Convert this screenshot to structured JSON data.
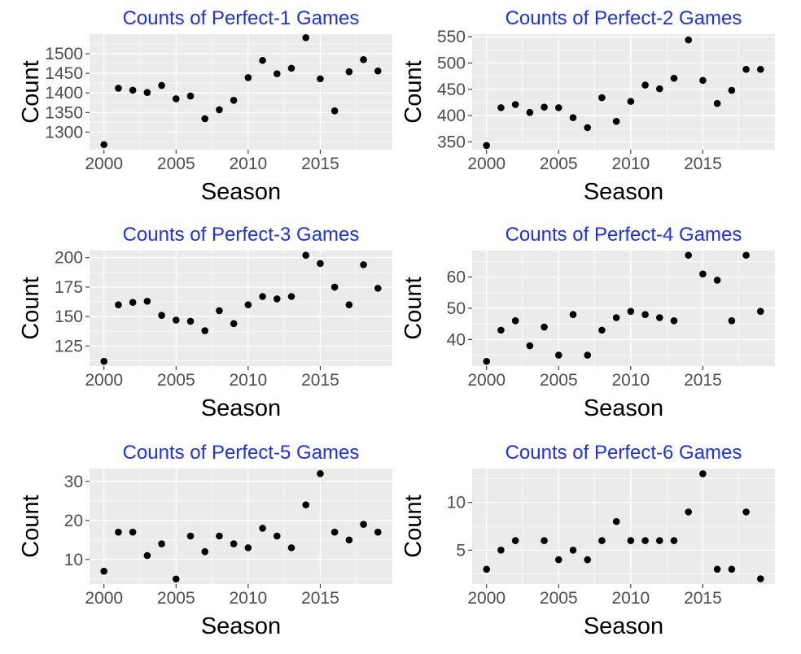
{
  "colors": {
    "title": "#1A2EFF",
    "panel": "#EBEBEB",
    "grid": "#FFFFFF",
    "point": "#000000"
  },
  "chart_data": [
    {
      "type": "scatter",
      "title": "Counts of Perfect-1 Games",
      "xlabel": "Season",
      "ylabel": "Count",
      "xlim": [
        1999,
        2020
      ],
      "ylim": [
        1255,
        1550
      ],
      "xticks": [
        2000,
        2005,
        2010,
        2015
      ],
      "yticks": [
        1300,
        1350,
        1400,
        1450,
        1500
      ],
      "grid": true,
      "x": [
        2000,
        2001,
        2002,
        2003,
        2004,
        2005,
        2006,
        2007,
        2008,
        2009,
        2010,
        2011,
        2012,
        2013,
        2014,
        2015,
        2016,
        2017,
        2018,
        2019
      ],
      "y": [
        1268,
        1412,
        1407,
        1401,
        1419,
        1385,
        1392,
        1334,
        1357,
        1381,
        1439,
        1483,
        1449,
        1463,
        1541,
        1436,
        1354,
        1454,
        1485,
        1456
      ]
    },
    {
      "type": "scatter",
      "title": "Counts of Perfect-2 Games",
      "xlabel": "Season",
      "ylabel": "Count",
      "xlim": [
        1999,
        2020
      ],
      "ylim": [
        335,
        555
      ],
      "xticks": [
        2000,
        2005,
        2010,
        2015
      ],
      "yticks": [
        350,
        400,
        450,
        500,
        550
      ],
      "grid": true,
      "x": [
        2000,
        2001,
        2002,
        2003,
        2004,
        2005,
        2006,
        2007,
        2008,
        2009,
        2010,
        2011,
        2012,
        2013,
        2014,
        2015,
        2016,
        2017,
        2018,
        2019
      ],
      "y": [
        343,
        415,
        421,
        406,
        416,
        415,
        396,
        377,
        434,
        389,
        427,
        458,
        451,
        471,
        544,
        467,
        423,
        448,
        488,
        488
      ]
    },
    {
      "type": "scatter",
      "title": "Counts of Perfect-3 Games",
      "xlabel": "Season",
      "ylabel": "Count",
      "xlim": [
        1999,
        2020
      ],
      "ylim": [
        108,
        206
      ],
      "xticks": [
        2000,
        2005,
        2010,
        2015
      ],
      "yticks": [
        125,
        150,
        175,
        200
      ],
      "grid": true,
      "x": [
        2000,
        2001,
        2002,
        2003,
        2004,
        2005,
        2006,
        2007,
        2008,
        2009,
        2010,
        2011,
        2012,
        2013,
        2014,
        2015,
        2016,
        2017,
        2018,
        2019
      ],
      "y": [
        112,
        160,
        162,
        163,
        151,
        147,
        146,
        138,
        155,
        144,
        160,
        167,
        165,
        167,
        202,
        195,
        175,
        160,
        194,
        174
      ]
    },
    {
      "type": "scatter",
      "title": "Counts of Perfect-4 Games",
      "xlabel": "Season",
      "ylabel": "Count",
      "xlim": [
        1999,
        2020
      ],
      "ylim": [
        31.5,
        68.5
      ],
      "xticks": [
        2000,
        2005,
        2010,
        2015
      ],
      "yticks": [
        40,
        50,
        60
      ],
      "grid": true,
      "x": [
        2000,
        2001,
        2002,
        2003,
        2004,
        2005,
        2006,
        2007,
        2008,
        2009,
        2010,
        2011,
        2012,
        2013,
        2014,
        2015,
        2016,
        2017,
        2018,
        2019
      ],
      "y": [
        33,
        43,
        46,
        38,
        44,
        35,
        48,
        35,
        43,
        47,
        49,
        48,
        47,
        46,
        67,
        61,
        59,
        46,
        67,
        49
      ]
    },
    {
      "type": "scatter",
      "title": "Counts of Perfect-5 Games",
      "xlabel": "Season",
      "ylabel": "Count",
      "xlim": [
        1999,
        2020
      ],
      "ylim": [
        3.7,
        33.3
      ],
      "xticks": [
        2000,
        2005,
        2010,
        2015
      ],
      "yticks": [
        10,
        20,
        30
      ],
      "grid": true,
      "x": [
        2000,
        2001,
        2002,
        2003,
        2004,
        2005,
        2006,
        2007,
        2008,
        2009,
        2010,
        2011,
        2012,
        2013,
        2014,
        2015,
        2016,
        2017,
        2018,
        2019
      ],
      "y": [
        7,
        17,
        17,
        11,
        14,
        5,
        16,
        12,
        16,
        14,
        13,
        18,
        16,
        13,
        24,
        32,
        17,
        15,
        19,
        17
      ]
    },
    {
      "type": "scatter",
      "title": "Counts of Perfect-6 Games",
      "xlabel": "Season",
      "ylabel": "Count",
      "xlim": [
        1999,
        2020
      ],
      "ylim": [
        1.45,
        13.55
      ],
      "xticks": [
        2000,
        2005,
        2010,
        2015
      ],
      "yticks": [
        5,
        10
      ],
      "grid": true,
      "x": [
        2000,
        2001,
        2002,
        2004,
        2005,
        2006,
        2007,
        2008,
        2009,
        2010,
        2011,
        2012,
        2013,
        2014,
        2015,
        2016,
        2017,
        2018,
        2019
      ],
      "y": [
        3,
        5,
        6,
        6,
        4,
        5,
        4,
        6,
        8,
        6,
        6,
        6,
        6,
        9,
        13,
        3,
        3,
        9,
        2
      ]
    }
  ]
}
